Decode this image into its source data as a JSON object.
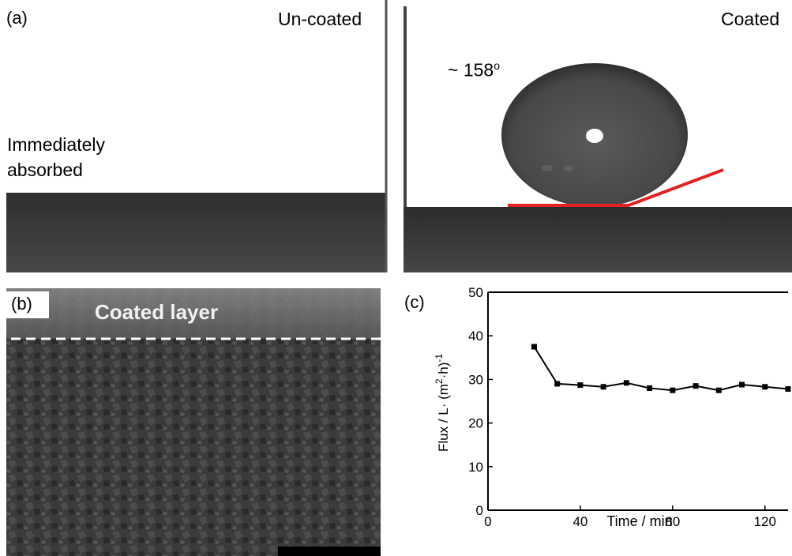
{
  "figure": {
    "panel_a": {
      "label": "(a)",
      "left_title": "Un-coated",
      "left_note_line1": "Immediately",
      "left_note_line2": "absorbed",
      "right_title": "Coated",
      "angle_label": "~ 158",
      "angle_unit": "o"
    },
    "panel_b": {
      "label": "(b)",
      "layer_label": "Coated layer"
    },
    "panel_c": {
      "label": "(c)",
      "xlabel": "Time / min",
      "ylabel_main": "Flux / L· (m",
      "ylabel_sup1": "2",
      "ylabel_mid": "·h)",
      "ylabel_sup2": "-1"
    }
  },
  "colors": {
    "substrate": "#3d3d3d",
    "droplet": "#4a4a4a",
    "tangent_line": "#e32222",
    "series_line": "#000000"
  },
  "chart_data": {
    "type": "line",
    "xlabel": "Time / min",
    "ylabel": "Flux / L· (m2·h)-1",
    "xlim": [
      0,
      130
    ],
    "ylim": [
      0,
      50
    ],
    "xticks": [
      0,
      40,
      80,
      120
    ],
    "yticks": [
      0,
      10,
      20,
      30,
      40,
      50
    ],
    "grid": false,
    "series": [
      {
        "x": [
          20,
          30,
          40,
          50,
          60,
          70,
          80,
          90,
          100,
          110,
          120,
          130
        ],
        "y": [
          37.5,
          29.0,
          28.7,
          28.3,
          29.2,
          28.0,
          27.5,
          28.5,
          27.5,
          28.8,
          28.3,
          27.8
        ]
      }
    ]
  }
}
